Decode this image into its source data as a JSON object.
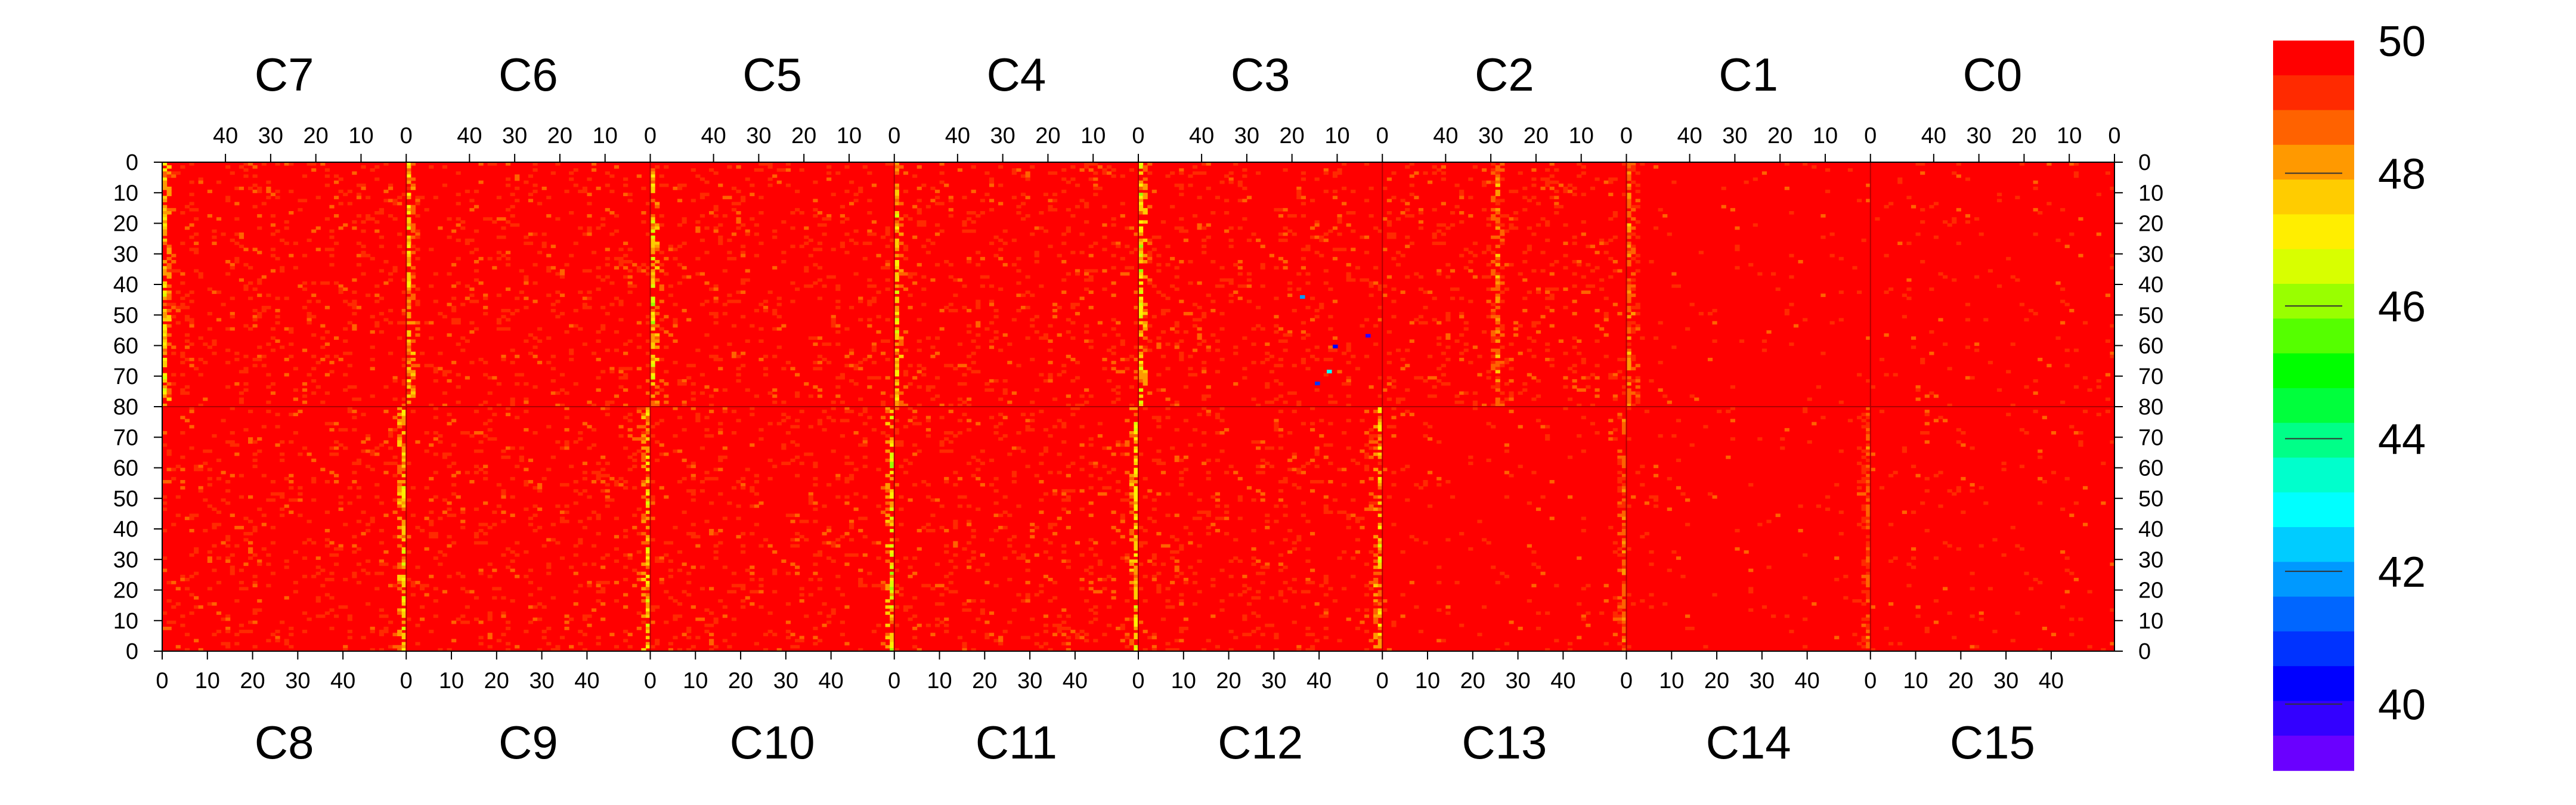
{
  "chart_data": {
    "type": "heatmap",
    "title": "",
    "xlabel": "",
    "ylabel": "",
    "chips_top": [
      "C7",
      "C6",
      "C5",
      "C4",
      "C3",
      "C2",
      "C1",
      "C0"
    ],
    "chips_bottom": [
      "C8",
      "C9",
      "C10",
      "C11",
      "C12",
      "C13",
      "C14",
      "C15"
    ],
    "x_ticks_top": [
      "40",
      "30",
      "20",
      "10",
      "0"
    ],
    "x_ticks_bottom": [
      "0",
      "10",
      "20",
      "30",
      "40"
    ],
    "y_ticks": [
      "0",
      "10",
      "20",
      "30",
      "40",
      "50",
      "60",
      "70",
      "80",
      "70",
      "60",
      "50",
      "40",
      "30",
      "20",
      "10",
      "0"
    ],
    "columns_per_chip": 54,
    "rows_per_half": 80,
    "zlim": [
      39,
      50
    ],
    "colorbar_ticks": [
      "50",
      "48",
      "46",
      "44",
      "42",
      "40"
    ],
    "colorbar_tick_values": [
      50,
      48,
      46,
      44,
      42,
      40
    ],
    "colorbar_colors": [
      "#ff0000",
      "#ff2a00",
      "#ff6200",
      "#ff9900",
      "#ffcc00",
      "#ffee00",
      "#d8ff00",
      "#99ff00",
      "#55ff00",
      "#00ff00",
      "#00ff3c",
      "#00ff88",
      "#00ffcc",
      "#00ffff",
      "#00ccff",
      "#0099ff",
      "#0066ff",
      "#0033ff",
      "#0000ff",
      "#3300ff",
      "#6a00ff"
    ],
    "typical_value": 50,
    "hot_columns_top": [
      {
        "chip": "C7",
        "col": 0,
        "level": 48.2
      },
      {
        "chip": "C6",
        "col": 0,
        "level": 48.3
      },
      {
        "chip": "C5",
        "col": 0,
        "level": 48.0
      },
      {
        "chip": "C4",
        "col": 0,
        "level": 48.2
      },
      {
        "chip": "C3",
        "col": 0,
        "level": 47.9
      },
      {
        "chip": "C2",
        "col": 25,
        "level": 49.0
      },
      {
        "chip": "C1",
        "col": 0,
        "level": 49.0
      }
    ],
    "hot_columns_bottom": [
      {
        "chip": "C8",
        "col": 53,
        "level": 48.0
      },
      {
        "chip": "C9",
        "col": 53,
        "level": 48.2
      },
      {
        "chip": "C10",
        "col": 53,
        "level": 47.8
      },
      {
        "chip": "C11",
        "col": 53,
        "level": 48.0
      },
      {
        "chip": "C12",
        "col": 53,
        "level": 48.3
      },
      {
        "chip": "C13",
        "col": 53,
        "level": 49.2
      },
      {
        "chip": "C14",
        "col": 53,
        "level": 49.4
      }
    ],
    "quiet_chips": [
      "C1",
      "C0",
      "C13",
      "C14",
      "C15"
    ]
  }
}
